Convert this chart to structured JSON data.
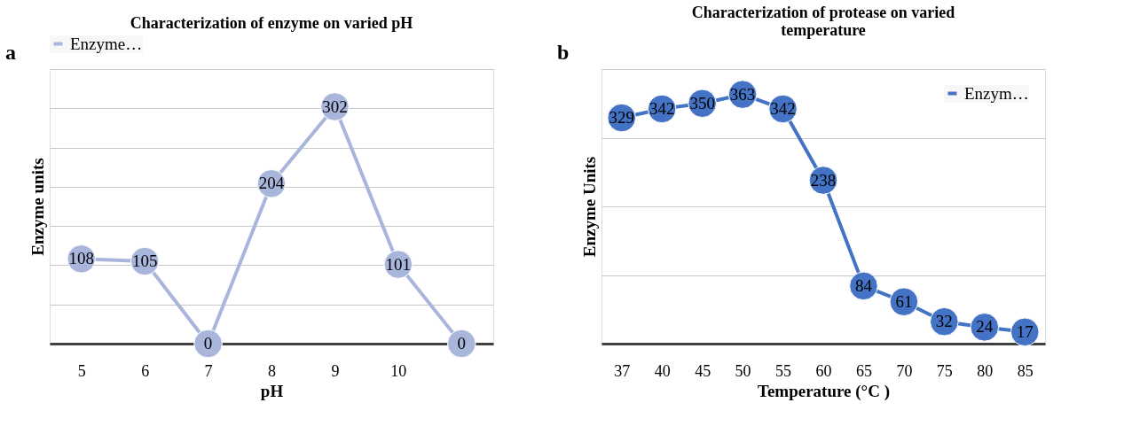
{
  "chart_data": [
    {
      "type": "line",
      "title": "Characterization of enzyme on varied pH",
      "xlabel": "pH",
      "ylabel": "Enzyme units",
      "annotations": [
        "a"
      ],
      "categories": [
        "5",
        "6",
        "7",
        "8",
        "9",
        "10",
        null
      ],
      "series": [
        {
          "name": "Enzyme…",
          "color": "#a9b6dc",
          "values": [
            108,
            105,
            0,
            204,
            302,
            101,
            0
          ]
        }
      ],
      "ylim": [
        0,
        350
      ],
      "yticks": [
        {
          "value": 0,
          "label": null
        },
        {
          "value": 50,
          "label": null
        },
        {
          "value": 100,
          "label": null
        },
        {
          "value": 150,
          "label": null
        },
        {
          "value": 200,
          "label": null
        },
        {
          "value": 250,
          "label": null
        },
        {
          "value": 300,
          "label": null
        },
        {
          "value": 350,
          "label": null
        }
      ],
      "data_labels": true,
      "grid": "y",
      "legend": "top",
      "marker": "circle",
      "line_style": "solid",
      "tick_labels": "x"
    },
    {
      "type": "line",
      "title": "Characterization of protease on varied temperature",
      "xlabel": "Temperature (°C )",
      "ylabel": "Enzyme Units",
      "annotations": [
        "b"
      ],
      "categories": [
        "37",
        "40",
        "45",
        "50",
        "55",
        "60",
        "65",
        "70",
        "75",
        "80",
        "85"
      ],
      "series": [
        {
          "name": "Enzym…",
          "color": "#4472c4",
          "values": [
            329,
            342,
            350,
            363,
            342,
            238,
            84,
            61,
            32,
            24,
            17
          ]
        }
      ],
      "ylim": [
        0,
        400
      ],
      "yticks": [
        {
          "value": 0,
          "label": null
        },
        {
          "value": 100,
          "label": null
        },
        {
          "value": 200,
          "label": null
        },
        {
          "value": 300,
          "label": null
        },
        {
          "value": 400,
          "label": null
        }
      ],
      "data_labels": true,
      "grid": "y",
      "legend": "top right",
      "marker": "circle",
      "line_style": "solid",
      "tick_labels": "x"
    }
  ]
}
